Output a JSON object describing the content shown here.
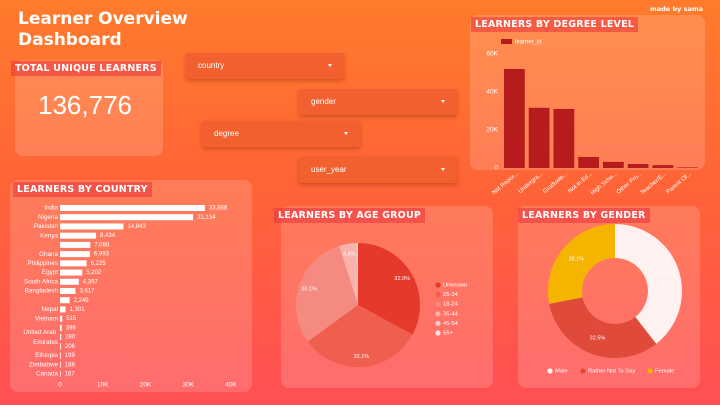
{
  "header": {
    "title": "Learner Overview Dashboard",
    "credit": "made by sama"
  },
  "kpi": {
    "title": "TOTAL UNIQUE LEARNERS",
    "value": "136,776"
  },
  "filters": [
    "country",
    "gender",
    "degree",
    "user_year"
  ],
  "chart_data": [
    {
      "type": "bar",
      "title": "LEARNERS BY DEGREE LEVEL",
      "categories": [
        "Not Repor...",
        "Undergra...",
        "Graduate...",
        "Not in Ed...",
        "High Scho...",
        "Other Pro...",
        "Teacher/E...",
        "Parent Of..."
      ],
      "series": [
        {
          "name": "learner_id",
          "color": "#b71c1c",
          "values": [
            52000,
            31600,
            31000,
            5800,
            3200,
            2100,
            1500,
            300
          ]
        }
      ],
      "ylim": [
        0,
        63000
      ],
      "yticks": [
        0,
        {
          "value": 20000,
          "label": "20K"
        },
        {
          "value": 40000,
          "label": "40K"
        },
        {
          "value": 60000,
          "label": "60K"
        }
      ],
      "legend": "top-left"
    },
    {
      "type": "hbar",
      "title": "LEARNERS BY COUNTRY",
      "categories": [
        "India",
        "Nigeria",
        "Pakistan",
        "Kenya",
        null,
        "Ghana",
        "Philippines",
        "Egypt",
        "South Africa",
        "Bangladesh",
        null,
        "Nepal",
        "Vietnam",
        null,
        "United Arab Emirates",
        null,
        "Ethiopia",
        "Zimbabwe",
        "Canada"
      ],
      "values": [
        33888,
        31134,
        14843,
        8434,
        7088,
        6993,
        6225,
        5202,
        4397,
        3617,
        2249,
        1301,
        515,
        396,
        280,
        206,
        199,
        188,
        167
      ],
      "value_labels": [
        "33,888",
        "31,134",
        "14,843",
        "8,434",
        "7,088",
        "6,993",
        "6,225",
        "5,202",
        "4,397",
        "3,617",
        "2,249",
        "1,301",
        "515",
        "396",
        "280",
        "206",
        "199",
        "188",
        "167"
      ],
      "color": "#ffffff",
      "xlim": [
        0,
        40000
      ],
      "xticks": [
        0,
        {
          "value": 10000,
          "label": "10K"
        },
        {
          "value": 20000,
          "label": "20K"
        },
        {
          "value": 30000,
          "label": "30K"
        },
        {
          "value": 40000,
          "label": "40K"
        }
      ]
    },
    {
      "type": "pie",
      "title": "LEARNERS BY AGE GROUP",
      "categories": [
        "Unknown",
        "25-34",
        "18-24",
        "35-44",
        "45-54",
        "55+"
      ],
      "values": [
        32.9,
        32.1,
        30.1,
        4.4,
        0.4,
        0.1
      ],
      "value_labels": [
        "32.9%",
        "32.1%",
        "30.1%",
        "4.4%",
        null,
        null
      ],
      "colors": [
        "#e5392b",
        "#ef5e4e",
        "#f58b80",
        "#f9b3ab",
        "#fbcdc8",
        "#fde4e0"
      ],
      "legend": "right"
    },
    {
      "type": "donut",
      "title": "LEARNERS BY GENDER",
      "categories": [
        "Male",
        "Rather Not To Say",
        "Female"
      ],
      "values": [
        39.5,
        32.5,
        28.1
      ],
      "value_labels": [
        "39.5%",
        "32.5%",
        "28.1%"
      ],
      "colors": [
        "#fff1ef",
        "#e04a3b",
        "#f5b400"
      ],
      "legend": "bottom"
    }
  ]
}
